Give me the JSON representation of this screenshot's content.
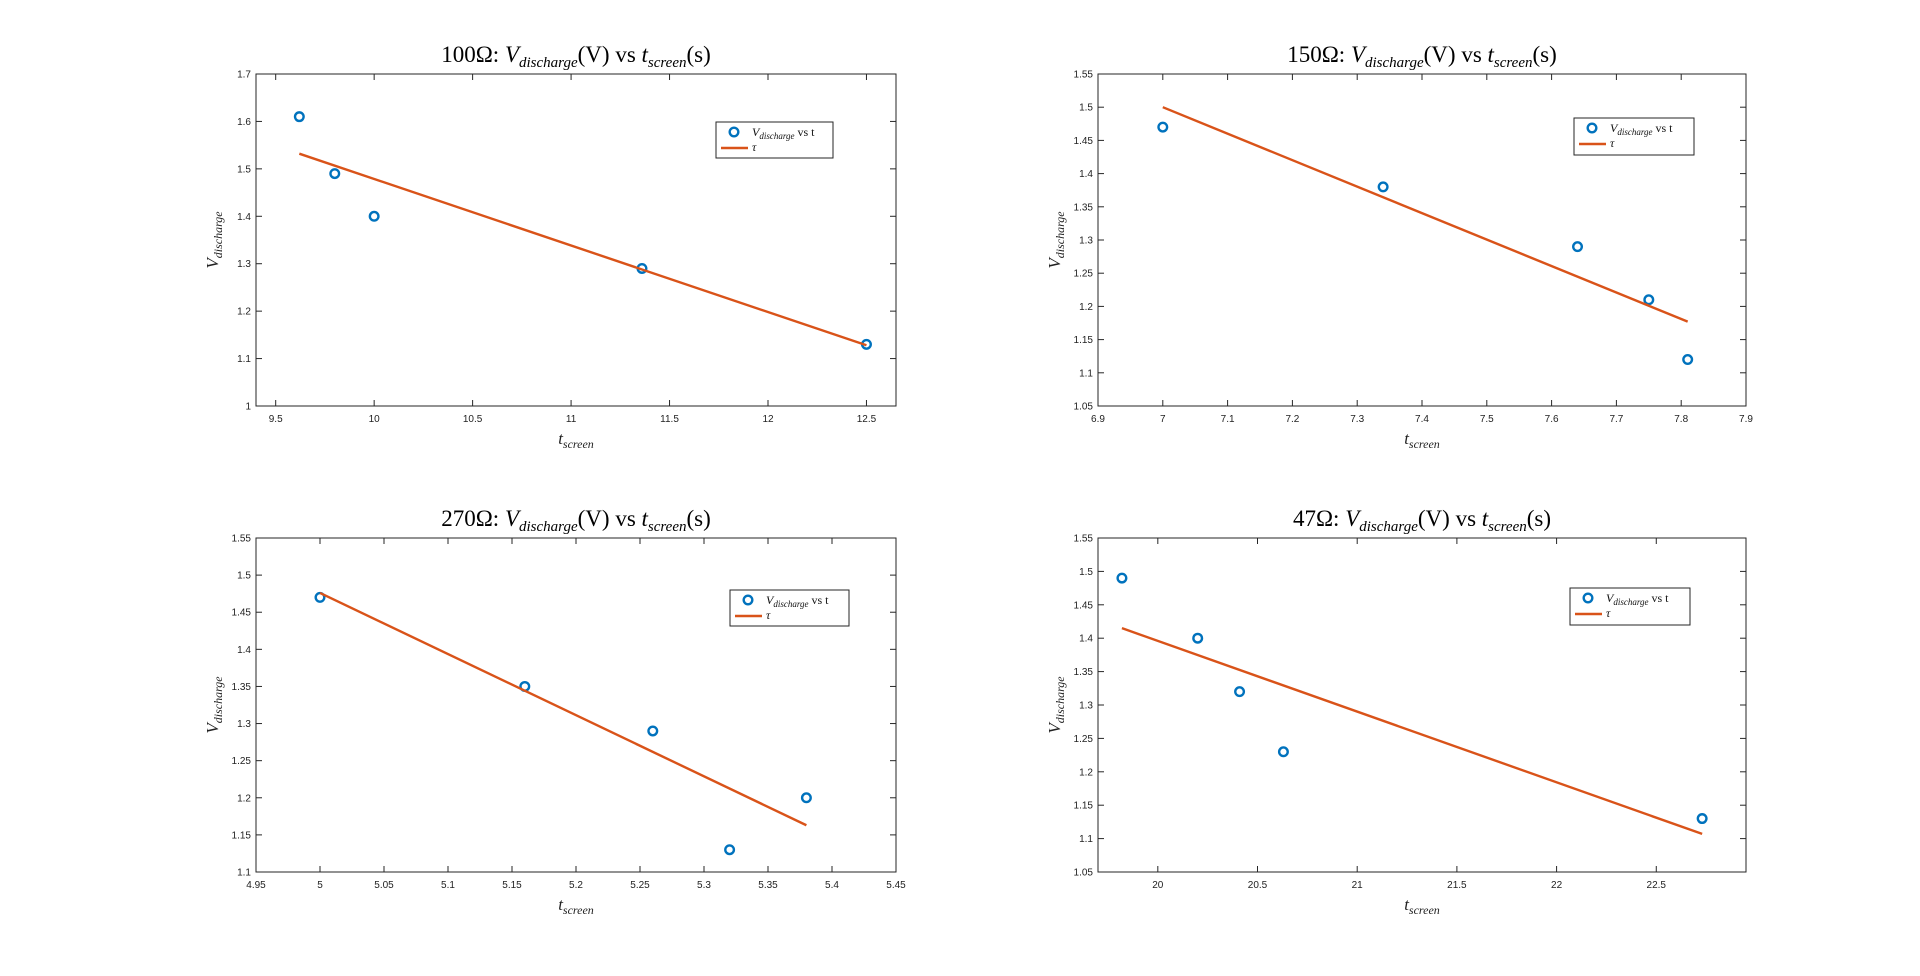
{
  "colors": {
    "marker": "#0072bd",
    "fit_line": "#d95319",
    "axes": "#262626",
    "background": "#ffffff"
  },
  "chart_data": [
    {
      "type": "scatter",
      "title": "100Ω: V_discharge(V) vs t_screen(s)",
      "title_parts": {
        "prefix": "100Ω:",
        "v": "V",
        "v_sub": "discharge",
        "v_unit": "(V)",
        "vs": "vs",
        "t": "t",
        "t_sub": "screen",
        "t_unit": "(s)"
      },
      "xlabel": {
        "main": "t",
        "sub": "screen"
      },
      "ylabel": {
        "main": "V",
        "sub": "discharge"
      },
      "xlim": [
        9.4,
        12.65
      ],
      "ylim": [
        1.0,
        1.7
      ],
      "xticks": [
        "9.5",
        "10",
        "10.5",
        "11",
        "11.5",
        "12",
        "12.5"
      ],
      "yticks": [
        "1",
        "1.1",
        "1.2",
        "1.3",
        "1.4",
        "1.5",
        "1.6",
        "1.7"
      ],
      "legend_position": "top-right",
      "series": [
        {
          "name": "V_discharge vs t",
          "legend": {
            "main": "V",
            "sub": "discharge",
            "rest": "vs t"
          },
          "kind": "markers",
          "x": [
            9.62,
            9.8,
            10.0,
            11.36,
            12.5
          ],
          "y": [
            1.61,
            1.49,
            1.4,
            1.29,
            1.13
          ]
        },
        {
          "name": "τ",
          "legend": {
            "main": "τ"
          },
          "kind": "line",
          "x": [
            9.62,
            12.5
          ],
          "y": [
            1.532,
            1.128
          ]
        }
      ]
    },
    {
      "type": "scatter",
      "title": "150Ω: V_discharge(V) vs t_screen(s)",
      "title_parts": {
        "prefix": "150Ω:",
        "v": "V",
        "v_sub": "discharge",
        "v_unit": "(V)",
        "vs": "vs",
        "t": "t",
        "t_sub": "screen",
        "t_unit": "(s)"
      },
      "xlabel": {
        "main": "t",
        "sub": "screen"
      },
      "ylabel": {
        "main": "V",
        "sub": "discharge"
      },
      "xlim": [
        6.9,
        7.9
      ],
      "ylim": [
        1.05,
        1.55
      ],
      "xticks": [
        "6.9",
        "7",
        "7.1",
        "7.2",
        "7.3",
        "7.4",
        "7.5",
        "7.6",
        "7.7",
        "7.8",
        "7.9"
      ],
      "yticks": [
        "1.05",
        "1.1",
        "1.15",
        "1.2",
        "1.25",
        "1.3",
        "1.35",
        "1.4",
        "1.45",
        "1.5",
        "1.55"
      ],
      "legend_position": "top-right",
      "series": [
        {
          "name": "V_discharge vs t",
          "legend": {
            "main": "V",
            "sub": "discharge",
            "rest": "vs t"
          },
          "kind": "markers",
          "x": [
            7.0,
            7.34,
            7.64,
            7.75,
            7.81
          ],
          "y": [
            1.47,
            1.38,
            1.29,
            1.21,
            1.12
          ]
        },
        {
          "name": "τ",
          "legend": {
            "main": "τ"
          },
          "kind": "line",
          "x": [
            7.0,
            7.81
          ],
          "y": [
            1.5,
            1.177
          ]
        }
      ]
    },
    {
      "type": "scatter",
      "title": "270Ω: V_discharge(V) vs t_screen(s)",
      "title_parts": {
        "prefix": "270Ω:",
        "v": "V",
        "v_sub": "discharge",
        "v_unit": "(V)",
        "vs": "vs",
        "t": "t",
        "t_sub": "screen",
        "t_unit": "(s)"
      },
      "xlabel": {
        "main": "t",
        "sub": "screen"
      },
      "ylabel": {
        "main": "V",
        "sub": "discharge"
      },
      "xlim": [
        4.95,
        5.45
      ],
      "ylim": [
        1.1,
        1.55
      ],
      "xticks": [
        "4.95",
        "5",
        "5.05",
        "5.1",
        "5.15",
        "5.2",
        "5.25",
        "5.3",
        "5.35",
        "5.4",
        "5.45"
      ],
      "yticks": [
        "1.1",
        "1.15",
        "1.2",
        "1.25",
        "1.3",
        "1.35",
        "1.4",
        "1.45",
        "1.5",
        "1.55"
      ],
      "legend_position": "top-right",
      "series": [
        {
          "name": "V_discharge vs t",
          "legend": {
            "main": "V",
            "sub": "discharge",
            "rest": "vs t"
          },
          "kind": "markers",
          "x": [
            5.0,
            5.16,
            5.26,
            5.32,
            5.38
          ],
          "y": [
            1.47,
            1.35,
            1.29,
            1.13,
            1.2
          ]
        },
        {
          "name": "τ",
          "legend": {
            "main": "τ"
          },
          "kind": "line",
          "x": [
            5.0,
            5.38
          ],
          "y": [
            1.476,
            1.163
          ]
        }
      ]
    },
    {
      "type": "scatter",
      "title": "47Ω: V_discharge(V) vs t_screen(s)",
      "title_parts": {
        "prefix": "47Ω:",
        "v": "V",
        "v_sub": "discharge",
        "v_unit": "(V)",
        "vs": "vs",
        "t": "t",
        "t_sub": "screen",
        "t_unit": "(s)"
      },
      "xlabel": {
        "main": "t",
        "sub": "screen"
      },
      "ylabel": {
        "main": "V",
        "sub": "discharge"
      },
      "xlim": [
        19.7,
        22.95
      ],
      "ylim": [
        1.05,
        1.55
      ],
      "xticks": [
        "20",
        "20.5",
        "21",
        "21.5",
        "22",
        "22.5"
      ],
      "yticks": [
        "1.05",
        "1.1",
        "1.15",
        "1.2",
        "1.25",
        "1.3",
        "1.35",
        "1.4",
        "1.45",
        "1.5",
        "1.55"
      ],
      "legend_position": "top-right",
      "series": [
        {
          "name": "V_discharge vs t",
          "legend": {
            "main": "V",
            "sub": "discharge",
            "rest": "vs t"
          },
          "kind": "markers",
          "x": [
            19.82,
            20.2,
            20.41,
            20.63,
            22.73
          ],
          "y": [
            1.49,
            1.4,
            1.32,
            1.23,
            1.13
          ]
        },
        {
          "name": "τ",
          "legend": {
            "main": "τ"
          },
          "kind": "line",
          "x": [
            19.82,
            22.73
          ],
          "y": [
            1.415,
            1.107
          ]
        }
      ]
    }
  ]
}
